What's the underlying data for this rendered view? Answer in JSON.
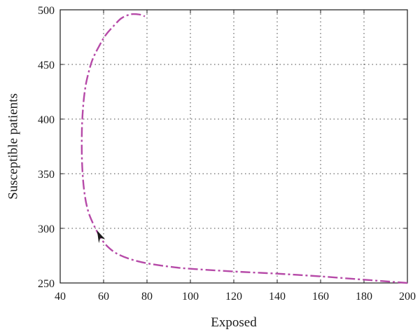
{
  "chart_data": {
    "type": "line",
    "title": "",
    "xlabel": "Exposed",
    "ylabel": "Susceptible patients",
    "xlim": [
      40,
      200
    ],
    "ylim": [
      250,
      500
    ],
    "xticks": [
      40,
      60,
      80,
      100,
      120,
      140,
      160,
      180,
      200
    ],
    "yticks": [
      250,
      300,
      350,
      400,
      450,
      500
    ],
    "grid": true,
    "series": [
      {
        "color": "#b64aa8",
        "line_style": "dash-dot",
        "x": [
          200,
          180,
          160,
          140,
          120,
          100,
          90,
          80,
          72,
          66,
          62,
          59,
          57,
          55,
          53,
          51.5,
          50.5,
          50,
          50,
          50.5,
          51.5,
          53,
          55,
          58,
          61,
          65,
          68,
          71,
          73,
          75,
          77,
          79
        ],
        "y": [
          250,
          253,
          256,
          258.5,
          260.5,
          263,
          265,
          268,
          272,
          277,
          283,
          290,
          297,
          305,
          315,
          328,
          345,
          365,
          390,
          410,
          428,
          442,
          455,
          467,
          477,
          486,
          492,
          495,
          496,
          496,
          495.5,
          494
        ]
      }
    ],
    "annotations": [
      {
        "type": "arrow",
        "x": 57,
        "y": 298,
        "direction": "up-left"
      }
    ]
  }
}
